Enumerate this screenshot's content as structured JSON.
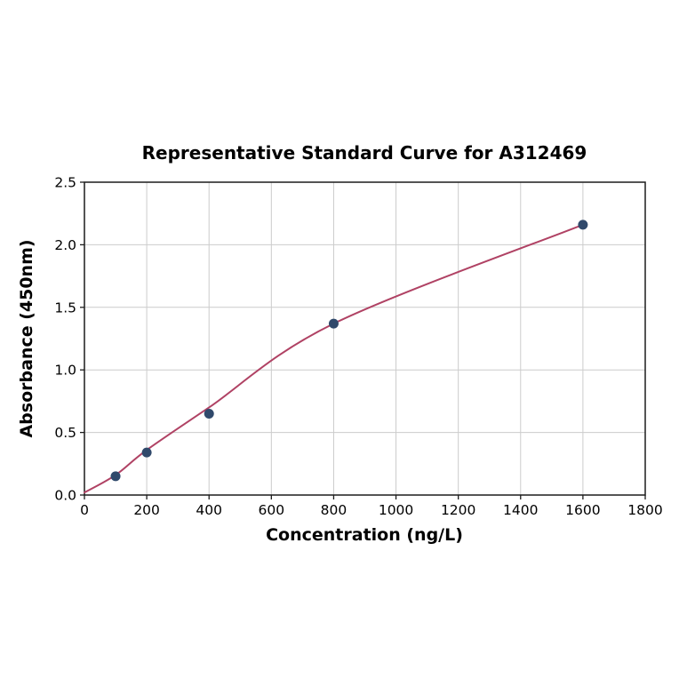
{
  "page": {
    "background": "#ffffff"
  },
  "chart_data": {
    "type": "scatter",
    "title": "Representative Standard Curve for A312469",
    "xlabel": "Concentration (ng/L)",
    "ylabel": "Absorbance (450nm)",
    "series": [
      {
        "name": "standard-points",
        "x": [
          100,
          200,
          400,
          800,
          1600
        ],
        "y": [
          0.15,
          0.34,
          0.65,
          1.37,
          2.16
        ]
      }
    ],
    "fit_curve": {
      "x": [
        0,
        100,
        200,
        400,
        800,
        1600
      ],
      "y": [
        0.02,
        0.16,
        0.36,
        0.7,
        1.37,
        2.16
      ]
    },
    "xlim": [
      0,
      1800
    ],
    "ylim": [
      0.0,
      2.5
    ],
    "xticks": [
      0,
      200,
      400,
      600,
      800,
      1000,
      1200,
      1400,
      1600,
      1800
    ],
    "yticks": [
      0.0,
      0.5,
      1.0,
      1.5,
      2.0,
      2.5
    ],
    "ytick_labels": [
      "0.0",
      "0.5",
      "1.0",
      "1.5",
      "2.0",
      "2.5"
    ],
    "grid": true,
    "legend": "none",
    "colors": {
      "curve": "#b04264",
      "points": "#30496b",
      "grid": "#cccccc",
      "spine": "#1c1c1c",
      "tick": "#1c1c1c",
      "text": "#000000",
      "background": "#ffffff"
    }
  }
}
